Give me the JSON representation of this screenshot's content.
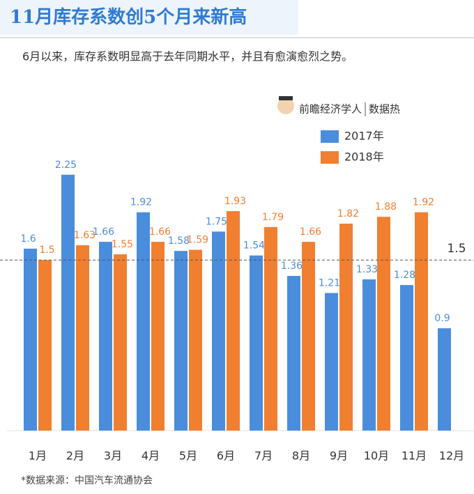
{
  "chart_data": {
    "type": "bar",
    "title": "11月库存系数创5个月来新高",
    "subtitle": "6月以来，库存系数明显高于去年同期水平，并且有愈演愈烈之势。",
    "brand": "前瞻经济学人",
    "brand_tag": "数据热",
    "source": "*数据来源：中国汽车流通协会",
    "categories": [
      "1月",
      "2月",
      "3月",
      "4月",
      "5月",
      "6月",
      "7月",
      "8月",
      "9月",
      "10月",
      "11月",
      "12月"
    ],
    "series": [
      {
        "name": "2017年",
        "color": "#4a8ddc",
        "values": [
          1.6,
          2.25,
          1.66,
          1.92,
          1.58,
          1.75,
          1.54,
          1.36,
          1.21,
          1.33,
          1.28,
          0.9
        ]
      },
      {
        "name": "2018年",
        "color": "#f07f30",
        "values": [
          1.5,
          1.63,
          1.55,
          1.66,
          1.59,
          1.93,
          1.79,
          1.66,
          1.82,
          1.88,
          1.92,
          null
        ]
      }
    ],
    "reference_line": 1.5,
    "ylim": [
      0,
      2.5
    ],
    "legend": "upper right"
  }
}
